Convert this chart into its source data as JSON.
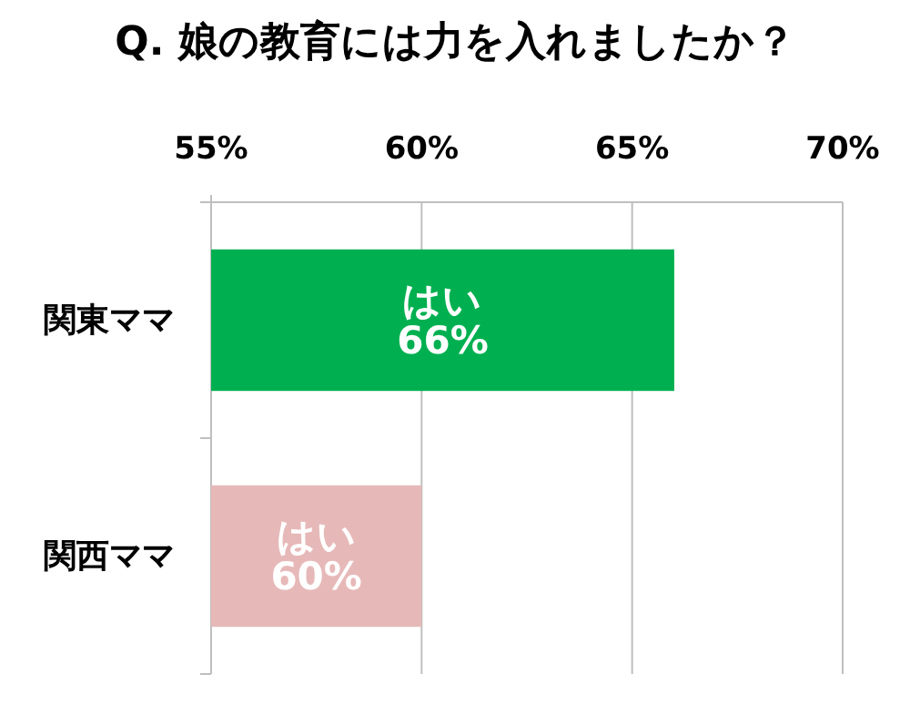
{
  "chart_data": {
    "type": "bar",
    "orientation": "horizontal",
    "title": "Q. 娘の教育には力を入れましたか？",
    "categories": [
      "関東ママ",
      "関西ママ"
    ],
    "values": [
      66,
      60
    ],
    "colors": [
      "#00b050",
      "#e6b9b8"
    ],
    "value_labels": [
      "はい\n66%",
      "はい\n60%"
    ],
    "xlim": [
      55,
      70
    ],
    "xticks": [
      {
        "value": 55,
        "label": "55%"
      },
      {
        "value": 60,
        "label": "60%"
      },
      {
        "value": 65,
        "label": "65%"
      },
      {
        "value": 70,
        "label": "70%"
      }
    ],
    "grid": "x"
  }
}
